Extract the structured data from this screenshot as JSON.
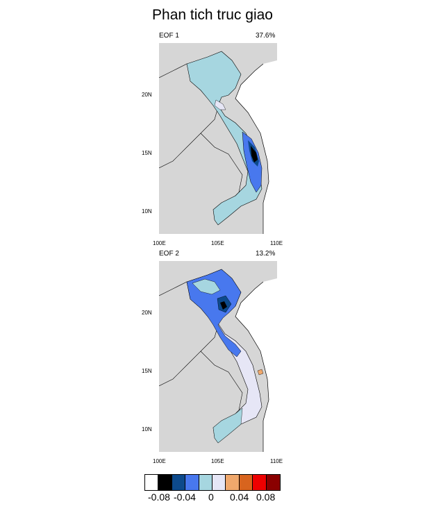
{
  "title": "Phan tich truc giao",
  "panels": [
    {
      "name": "EOF 1",
      "variance": "37.6%"
    },
    {
      "name": "EOF 2",
      "variance": "13.2%"
    }
  ],
  "axes": {
    "lon_ticks": [
      "100E",
      "105E",
      "110E"
    ],
    "lat_ticks": [
      "20N",
      "15N",
      "10N"
    ]
  },
  "colorbar": {
    "colors": [
      "#ffffff",
      "#000000",
      "#0d4a8c",
      "#4878ee",
      "#a6d6e0",
      "#e6e6f6",
      "#f0a86c",
      "#d8641e",
      "#ee0000",
      "#8a0000"
    ],
    "labels": [
      "-0.08",
      "-0.04",
      "0",
      "0.04",
      "0.08"
    ]
  },
  "colors": {
    "land": "#d6d6d6",
    "sea": "#ffffff",
    "border": "#000000"
  }
}
